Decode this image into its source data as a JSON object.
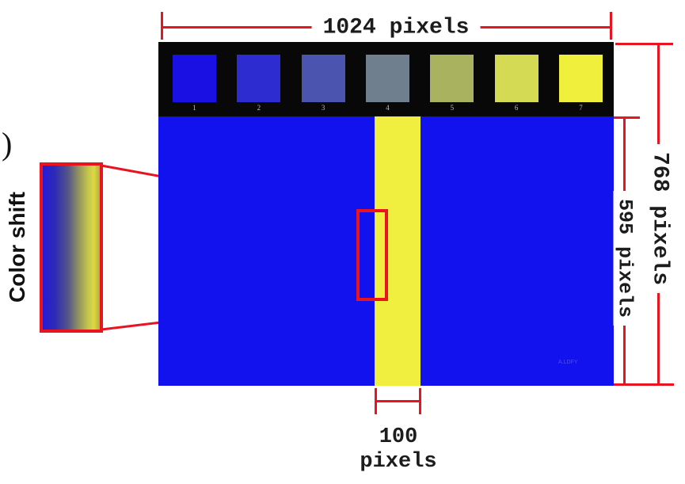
{
  "labels": {
    "figure_label_partial": ")",
    "color_shift": "Color shift",
    "watermark": "A.LDFY"
  },
  "dimensions": {
    "top_width": "1024 pixels",
    "full_height": "768 pixels",
    "content_height": "595 pixels",
    "stripe_width_value": "100",
    "stripe_width_unit": "pixels"
  },
  "swatch_bar": {
    "swatches": [
      {
        "number": "1",
        "color": "#1b10e4"
      },
      {
        "number": "2",
        "color": "#2c2cd0"
      },
      {
        "number": "3",
        "color": "#4b55b0"
      },
      {
        "number": "4",
        "color": "#6f7f8e"
      },
      {
        "number": "5",
        "color": "#a9b35f"
      },
      {
        "number": "6",
        "color": "#d5da55"
      },
      {
        "number": "7",
        "color": "#f0f03c"
      }
    ]
  },
  "colors": {
    "annotation_red": "#e81420",
    "screen_blue": "#1212ee",
    "stripe_yellow": "#f0ef3f",
    "bar_black": "#080808"
  }
}
